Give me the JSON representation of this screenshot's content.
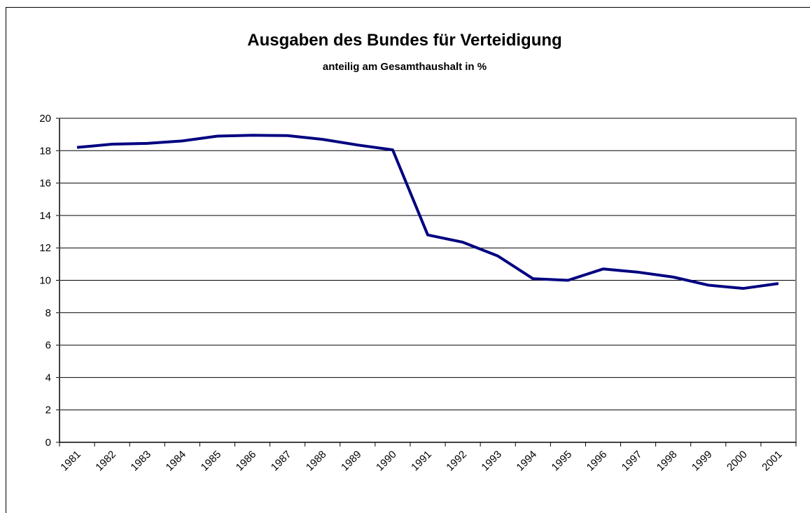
{
  "chart_data": {
    "type": "line",
    "title": "Ausgaben des Bundes für Verteidigung",
    "subtitle": "anteilig am Gesamthaushalt in %",
    "categories": [
      "1981",
      "1982",
      "1983",
      "1984",
      "1985",
      "1986",
      "1987",
      "1988",
      "1989",
      "1990",
      "1991",
      "1992",
      "1993",
      "1994",
      "1995",
      "1996",
      "1997",
      "1998",
      "1999",
      "2000",
      "2001"
    ],
    "series": [
      {
        "color": "#000080",
        "values": [
          18.2,
          18.4,
          18.45,
          18.6,
          18.9,
          18.95,
          18.93,
          18.7,
          18.35,
          18.05,
          12.8,
          12.35,
          11.5,
          10.1,
          10.0,
          10.7,
          10.5,
          10.2,
          9.7,
          9.5,
          9.8
        ]
      }
    ],
    "ylim": [
      0,
      20
    ],
    "yticks": [
      0,
      2,
      4,
      6,
      8,
      10,
      12,
      14,
      16,
      18,
      20
    ],
    "grid": true
  }
}
